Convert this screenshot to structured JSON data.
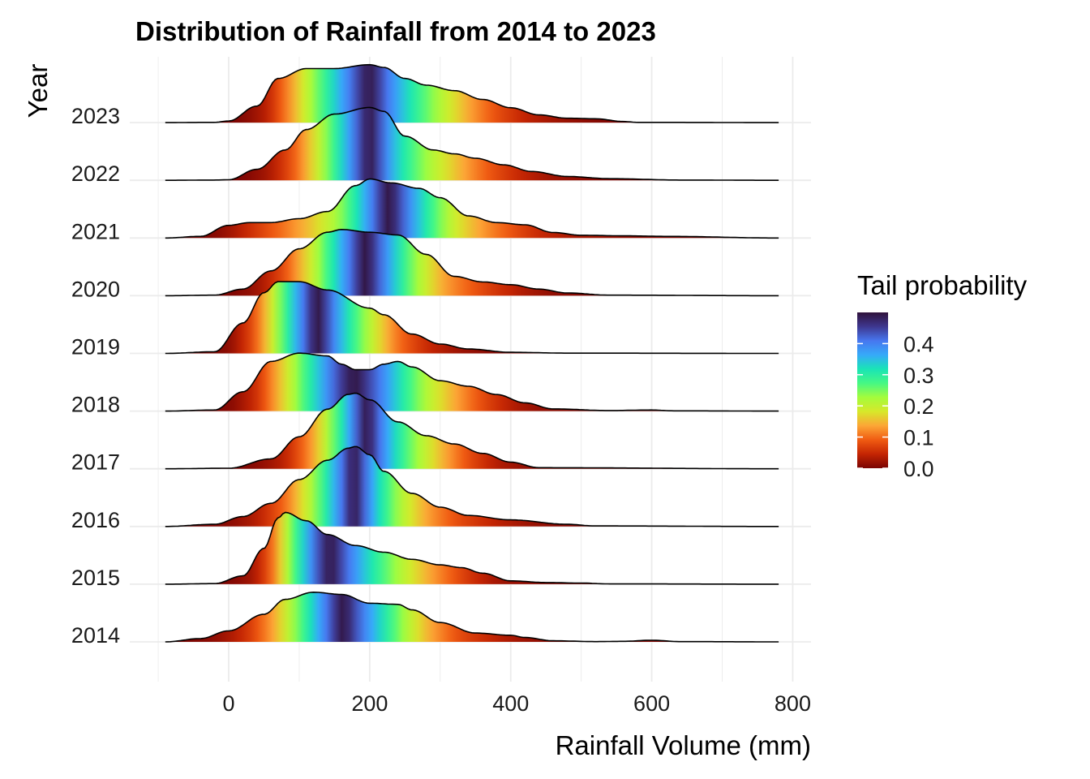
{
  "chart_data": {
    "type": "ridgeline",
    "title": "Distribution of Rainfall from 2014 to 2023",
    "xlabel": "Rainfall Volume (mm)",
    "ylabel": "Year",
    "xlim": [
      -90,
      780
    ],
    "x_ticks": [
      0,
      200,
      400,
      600,
      800
    ],
    "x_tick_labels": [
      "0",
      "200",
      "400",
      "600",
      "800"
    ],
    "fill_by": "tail probability",
    "legend": {
      "title": "Tail probability",
      "position": "right",
      "range": [
        0,
        0.5
      ],
      "ticks": [
        0.0,
        0.1,
        0.2,
        0.3,
        0.4
      ],
      "tick_labels": [
        "0.0",
        "0.1",
        "0.2",
        "0.3",
        "0.4"
      ],
      "palette": [
        "#7a0403",
        "#c42503",
        "#f05b12",
        "#fca636",
        "#d7e82a",
        "#a4fc3c",
        "#46f884",
        "#1ae4b6",
        "#36aaf9",
        "#4777ef",
        "#3e378f",
        "#30123b"
      ]
    },
    "gridlines": true,
    "series": [
      {
        "name": "2014",
        "x": [
          -90,
          -40,
          0,
          50,
          80,
          120,
          160,
          200,
          240,
          260,
          300,
          350,
          400,
          420,
          460,
          520,
          560,
          600,
          640,
          780
        ],
        "density": [
          0,
          0.06,
          0.2,
          0.5,
          0.77,
          0.9,
          0.86,
          0.7,
          0.68,
          0.58,
          0.35,
          0.16,
          0.12,
          0.08,
          0.02,
          0.005,
          0.01,
          0.03,
          0.005,
          0
        ]
      },
      {
        "name": "2015",
        "x": [
          -90,
          -20,
          20,
          50,
          70,
          80,
          110,
          140,
          180,
          220,
          260,
          300,
          330,
          360,
          400,
          450,
          500,
          540,
          780
        ],
        "density": [
          0,
          0.01,
          0.15,
          0.65,
          1.2,
          1.3,
          1.15,
          0.9,
          0.7,
          0.58,
          0.45,
          0.35,
          0.3,
          0.2,
          0.06,
          0.03,
          0.02,
          0.005,
          0
        ]
      },
      {
        "name": "2016",
        "x": [
          -90,
          -20,
          20,
          60,
          100,
          140,
          170,
          180,
          200,
          220,
          260,
          300,
          340,
          400,
          480,
          520,
          780
        ],
        "density": [
          0,
          0.04,
          0.18,
          0.42,
          0.85,
          1.2,
          1.42,
          1.45,
          1.3,
          1.0,
          0.6,
          0.35,
          0.2,
          0.12,
          0.04,
          0.01,
          0
        ]
      },
      {
        "name": "2017",
        "x": [
          -90,
          0,
          60,
          100,
          140,
          170,
          180,
          200,
          240,
          280,
          320,
          360,
          400,
          440,
          780
        ],
        "density": [
          0,
          0.01,
          0.18,
          0.58,
          1.08,
          1.35,
          1.37,
          1.25,
          0.85,
          0.6,
          0.45,
          0.28,
          0.12,
          0.02,
          0
        ]
      },
      {
        "name": "2018",
        "x": [
          -90,
          -20,
          20,
          60,
          100,
          140,
          160,
          180,
          200,
          220,
          240,
          260,
          300,
          340,
          380,
          420,
          460,
          540,
          600,
          630,
          780
        ],
        "density": [
          0,
          0.02,
          0.35,
          0.9,
          1.05,
          1.0,
          0.85,
          0.75,
          0.75,
          0.85,
          0.9,
          0.8,
          0.55,
          0.45,
          0.3,
          0.15,
          0.04,
          0.01,
          0.02,
          0.005,
          0
        ]
      },
      {
        "name": "2019",
        "x": [
          -90,
          -20,
          20,
          50,
          70,
          100,
          140,
          200,
          220,
          260,
          300,
          340,
          400,
          480,
          780
        ],
        "density": [
          0,
          0.03,
          0.55,
          1.1,
          1.3,
          1.3,
          1.15,
          0.82,
          0.7,
          0.35,
          0.17,
          0.08,
          0.02,
          0.005,
          0
        ]
      },
      {
        "name": "2020",
        "x": [
          -90,
          -20,
          20,
          60,
          100,
          140,
          160,
          200,
          240,
          280,
          320,
          360,
          400,
          440,
          480,
          540,
          780
        ],
        "density": [
          0,
          0.01,
          0.12,
          0.45,
          0.85,
          1.15,
          1.2,
          1.15,
          1.1,
          0.75,
          0.35,
          0.25,
          0.2,
          0.12,
          0.05,
          0.01,
          0
        ]
      },
      {
        "name": "2021",
        "x": [
          -90,
          -40,
          0,
          30,
          60,
          100,
          140,
          180,
          200,
          230,
          270,
          300,
          340,
          380,
          420,
          460,
          500,
          560,
          620,
          780
        ],
        "density": [
          0,
          0.03,
          0.23,
          0.28,
          0.28,
          0.35,
          0.48,
          0.95,
          1.07,
          1.0,
          0.9,
          0.73,
          0.4,
          0.28,
          0.24,
          0.1,
          0.05,
          0.04,
          0.03,
          0
        ]
      },
      {
        "name": "2022",
        "x": [
          -90,
          -20,
          0,
          40,
          80,
          110,
          150,
          200,
          220,
          250,
          290,
          320,
          350,
          390,
          430,
          480,
          540,
          640,
          780
        ],
        "density": [
          0,
          0.005,
          0.01,
          0.2,
          0.55,
          0.92,
          1.2,
          1.32,
          1.25,
          0.8,
          0.55,
          0.48,
          0.4,
          0.28,
          0.16,
          0.07,
          0.03,
          0.005,
          0
        ]
      },
      {
        "name": "2023",
        "x": [
          -90,
          -20,
          0,
          40,
          70,
          110,
          150,
          200,
          220,
          250,
          280,
          320,
          360,
          400,
          440,
          480,
          520,
          560,
          580,
          780
        ],
        "density": [
          0,
          0.005,
          0.03,
          0.3,
          0.8,
          0.98,
          0.98,
          1.05,
          1.0,
          0.8,
          0.68,
          0.58,
          0.42,
          0.27,
          0.14,
          0.08,
          0.07,
          0.02,
          0.005,
          0
        ]
      }
    ]
  }
}
